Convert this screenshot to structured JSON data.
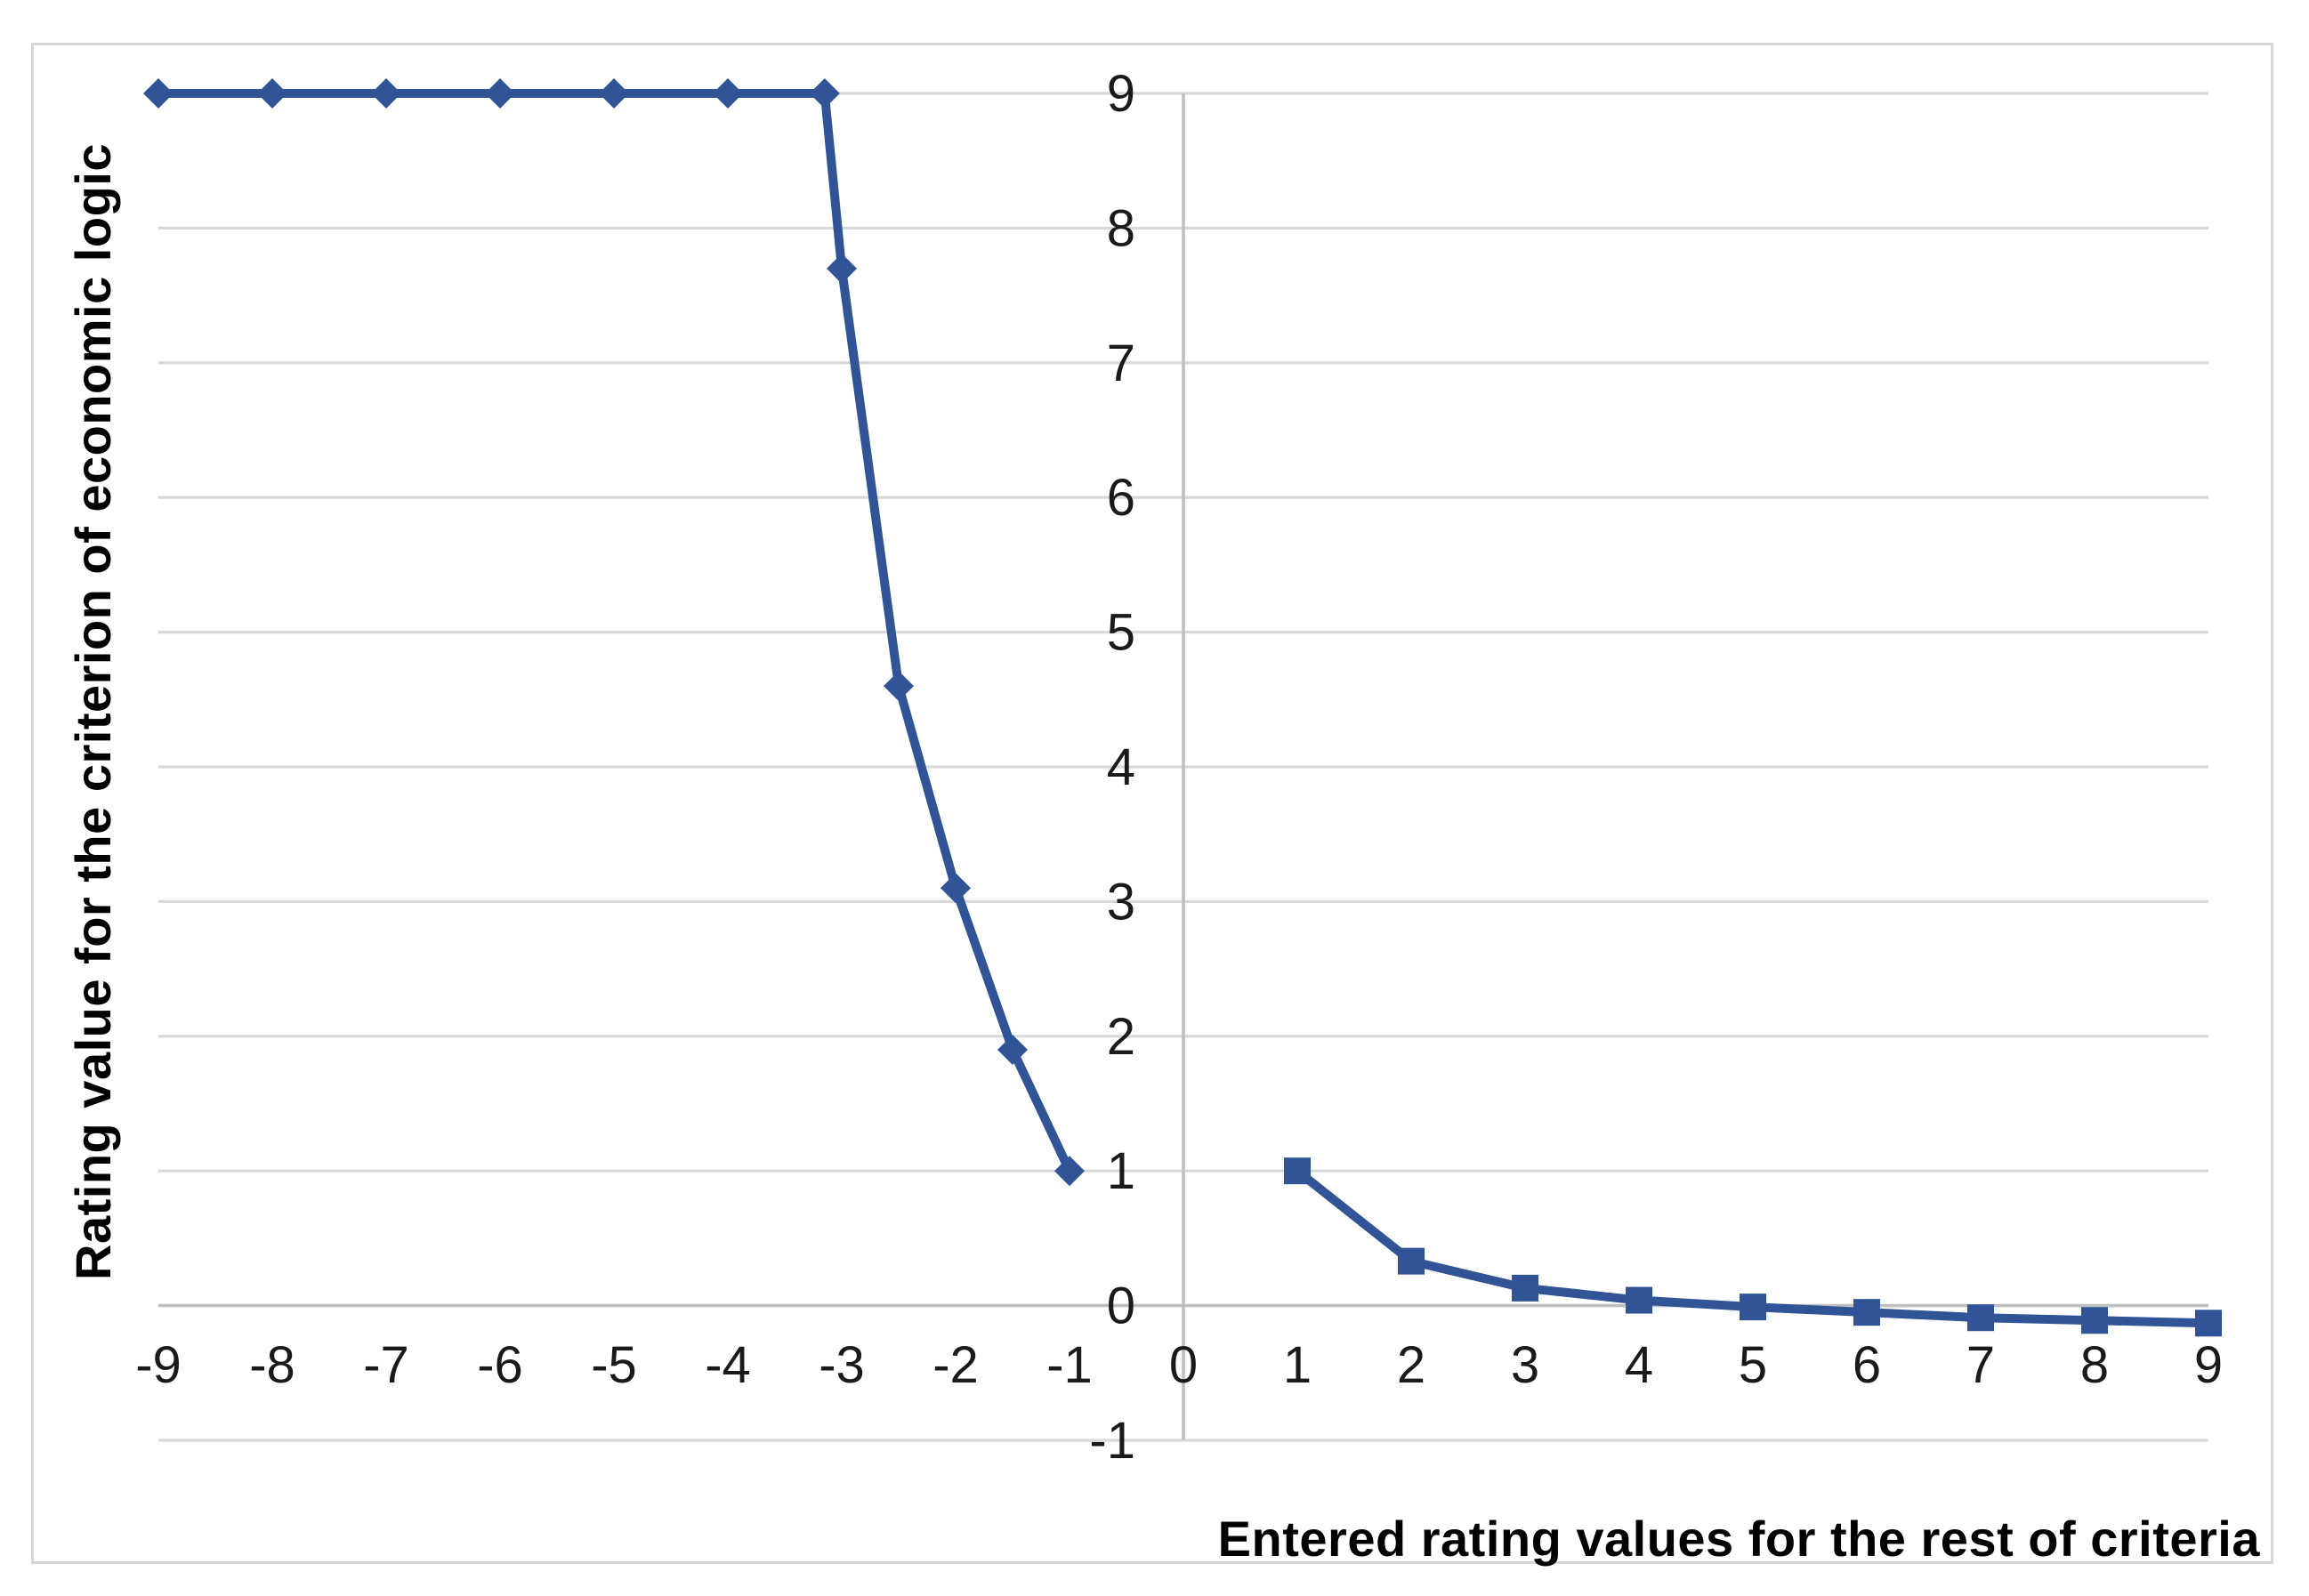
{
  "figure": {
    "background": "#FFFFFF",
    "frame_color": "#D6D6D6"
  },
  "chart_data": {
    "type": "line",
    "title": "",
    "xlabel": "Entered rating values for the rest of criteria",
    "ylabel": "Rating value for the criterion of economic logic",
    "xlim": [
      -9,
      9
    ],
    "ylim": [
      -1,
      9
    ],
    "x_ticks": [
      -9,
      -8,
      -7,
      -6,
      -5,
      -4,
      -3,
      -2,
      -1,
      0,
      1,
      2,
      3,
      4,
      5,
      6,
      7,
      8,
      9
    ],
    "y_ticks": [
      -1,
      0,
      1,
      2,
      3,
      4,
      5,
      6,
      7,
      8,
      9
    ],
    "grid": "horizontal-only",
    "legend_position": "none",
    "series": [
      {
        "name": "diamond-series",
        "marker": "diamond",
        "x": [
          -9,
          -8,
          -7,
          -6,
          -5,
          -4,
          -3.15,
          -3,
          -2.5,
          -2,
          -1.5,
          -1
        ],
        "y": [
          9,
          9,
          9,
          9,
          9,
          9,
          9,
          7.7,
          4.6,
          3.1,
          1.9,
          1
        ]
      },
      {
        "name": "square-series",
        "marker": "square",
        "x": [
          1,
          2,
          3,
          4,
          5,
          6,
          7,
          8,
          9
        ],
        "y": [
          1,
          0.33,
          0.13,
          0.04,
          -0.01,
          -0.05,
          -0.09,
          -0.11,
          -0.13
        ]
      }
    ],
    "colors": {
      "series": "#305496",
      "gridline": "#D9D9D9",
      "axis_line": "#BFBFBF",
      "tick_text": "#1A1A1A",
      "title_text": "#000000"
    }
  }
}
